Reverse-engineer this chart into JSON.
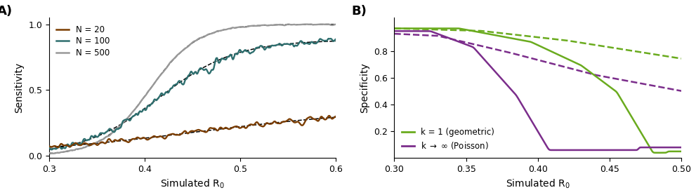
{
  "panel_A": {
    "xlabel": "Simulated R$_0$",
    "ylabel": "Sensitivity",
    "xlim": [
      0.3,
      0.6
    ],
    "ylim": [
      -0.02,
      1.05
    ],
    "xticks": [
      0.3,
      0.4,
      0.5,
      0.6
    ],
    "yticks": [
      0,
      0.5,
      1
    ]
  },
  "panel_B": {
    "xlabel": "Simulated R$_0$",
    "ylabel": "Specificity",
    "xlim": [
      0.3,
      0.5
    ],
    "ylim": [
      0.0,
      1.05
    ],
    "xticks": [
      0.3,
      0.35,
      0.4,
      0.45,
      0.5
    ],
    "yticks": [
      0.2,
      0.4,
      0.6,
      0.8
    ]
  },
  "colors": {
    "brown": "#7B3D00",
    "teal": "#2E6E6E",
    "gray": "#999999",
    "green": "#6AAB1E",
    "purple": "#7B2D8B"
  },
  "background": "#ffffff"
}
